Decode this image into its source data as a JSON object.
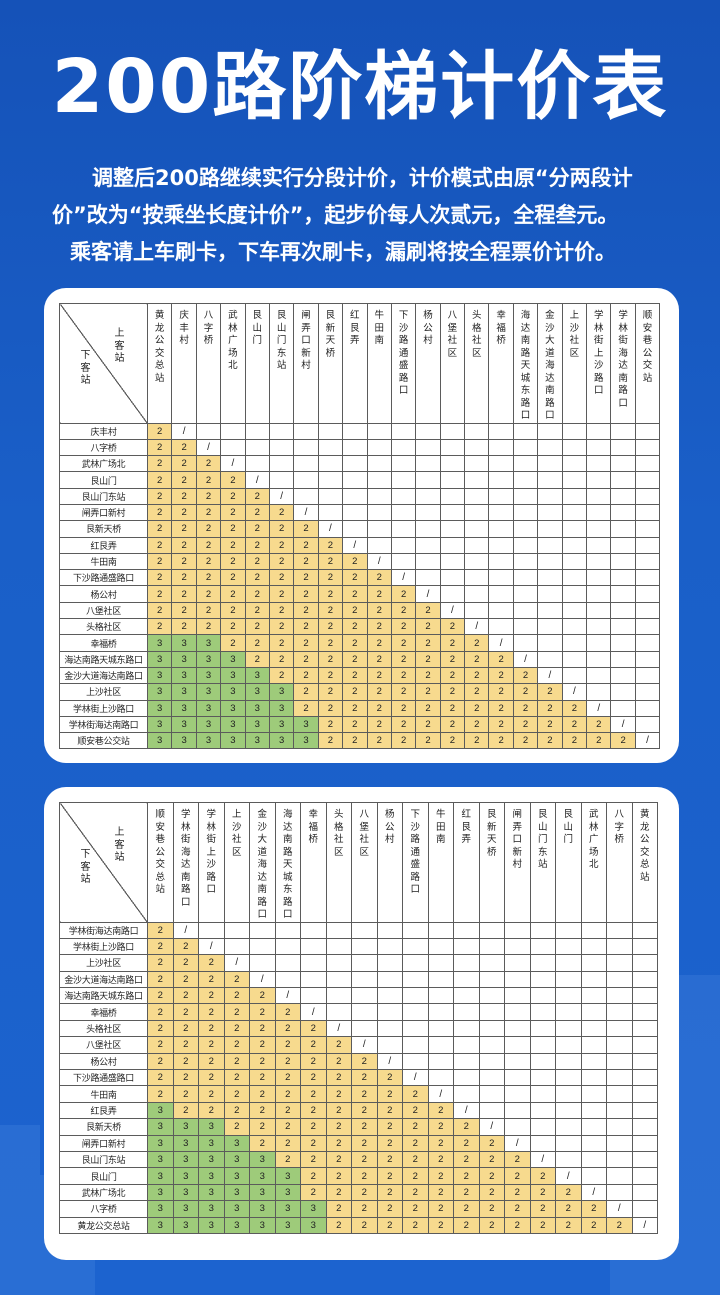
{
  "title": "200路阶梯计价表",
  "intro": {
    "line1": "调整后200路继续实行分段计价，计价模式由原“分两段计",
    "line2": "价”改为“按乘坐长度计价”，起步价每人次贰元，全程叁元。",
    "line3": "乘客请上车刷卡，下车再次刷卡，漏刷将按全程票价计价。"
  },
  "tables": [
    {
      "corner_board": "上客站",
      "corner_alight": "下客站",
      "stops": [
        "黄龙公交总站",
        "庆丰村",
        "八字桥",
        "武林广场北",
        "艮山门",
        "艮山门东站",
        "闸弄口新村",
        "艮新天桥",
        "红艮弄",
        "牛田南",
        "下沙路通盛路口",
        "杨公村",
        "八堡社区",
        "头格社区",
        "幸福桥",
        "海达南路天城东路口",
        "金沙大道海达南路口",
        "上沙社区",
        "学林街上沙路口",
        "学林街海达南路口",
        "顺安巷公交站"
      ],
      "diagonal": "/",
      "fare_low": 2,
      "fare_high": 3,
      "high_counts": [
        0,
        0,
        0,
        0,
        0,
        0,
        0,
        0,
        0,
        0,
        0,
        0,
        0,
        3,
        4,
        5,
        6,
        6,
        7,
        7,
        7
      ]
    },
    {
      "corner_board": "上客站",
      "corner_alight": "下客站",
      "stops": [
        "顺安巷公交总站",
        "学林街海达南路口",
        "学林街上沙路口",
        "上沙社区",
        "金沙大道海达南路口",
        "海达南路天城东路口",
        "幸福桥",
        "头格社区",
        "八堡社区",
        "杨公村",
        "下沙路通盛路口",
        "牛田南",
        "红艮弄",
        "艮新天桥",
        "闸弄口新村",
        "艮山门东站",
        "艮山门",
        "武林广场北",
        "八字桥",
        "黄龙公交总站"
      ],
      "row_stops": [
        "学林街海达南路口",
        "学林街上沙路口",
        "上沙社区",
        "金沙大道海达南路口",
        "海达南路天城东路口",
        "幸福桥",
        "头格社区",
        "八堡社区",
        "杨公村",
        "下沙路通盛路口",
        "牛田南",
        "红艮弄",
        "艮新天桥",
        "闸弄口新村",
        "艮山门东站",
        "艮山门",
        "武林广场北",
        "八字桥",
        "黄龙公交总站"
      ],
      "diagonal": "/",
      "fare_low": 2,
      "fare_high": 3,
      "high_counts": [
        0,
        0,
        0,
        0,
        0,
        0,
        0,
        0,
        0,
        0,
        0,
        1,
        3,
        4,
        5,
        6,
        6,
        7,
        7
      ]
    }
  ],
  "colors": {
    "background": "#1a5fc8",
    "fare_2": "#f7da8e",
    "fare_3": "#9ecb7a"
  }
}
